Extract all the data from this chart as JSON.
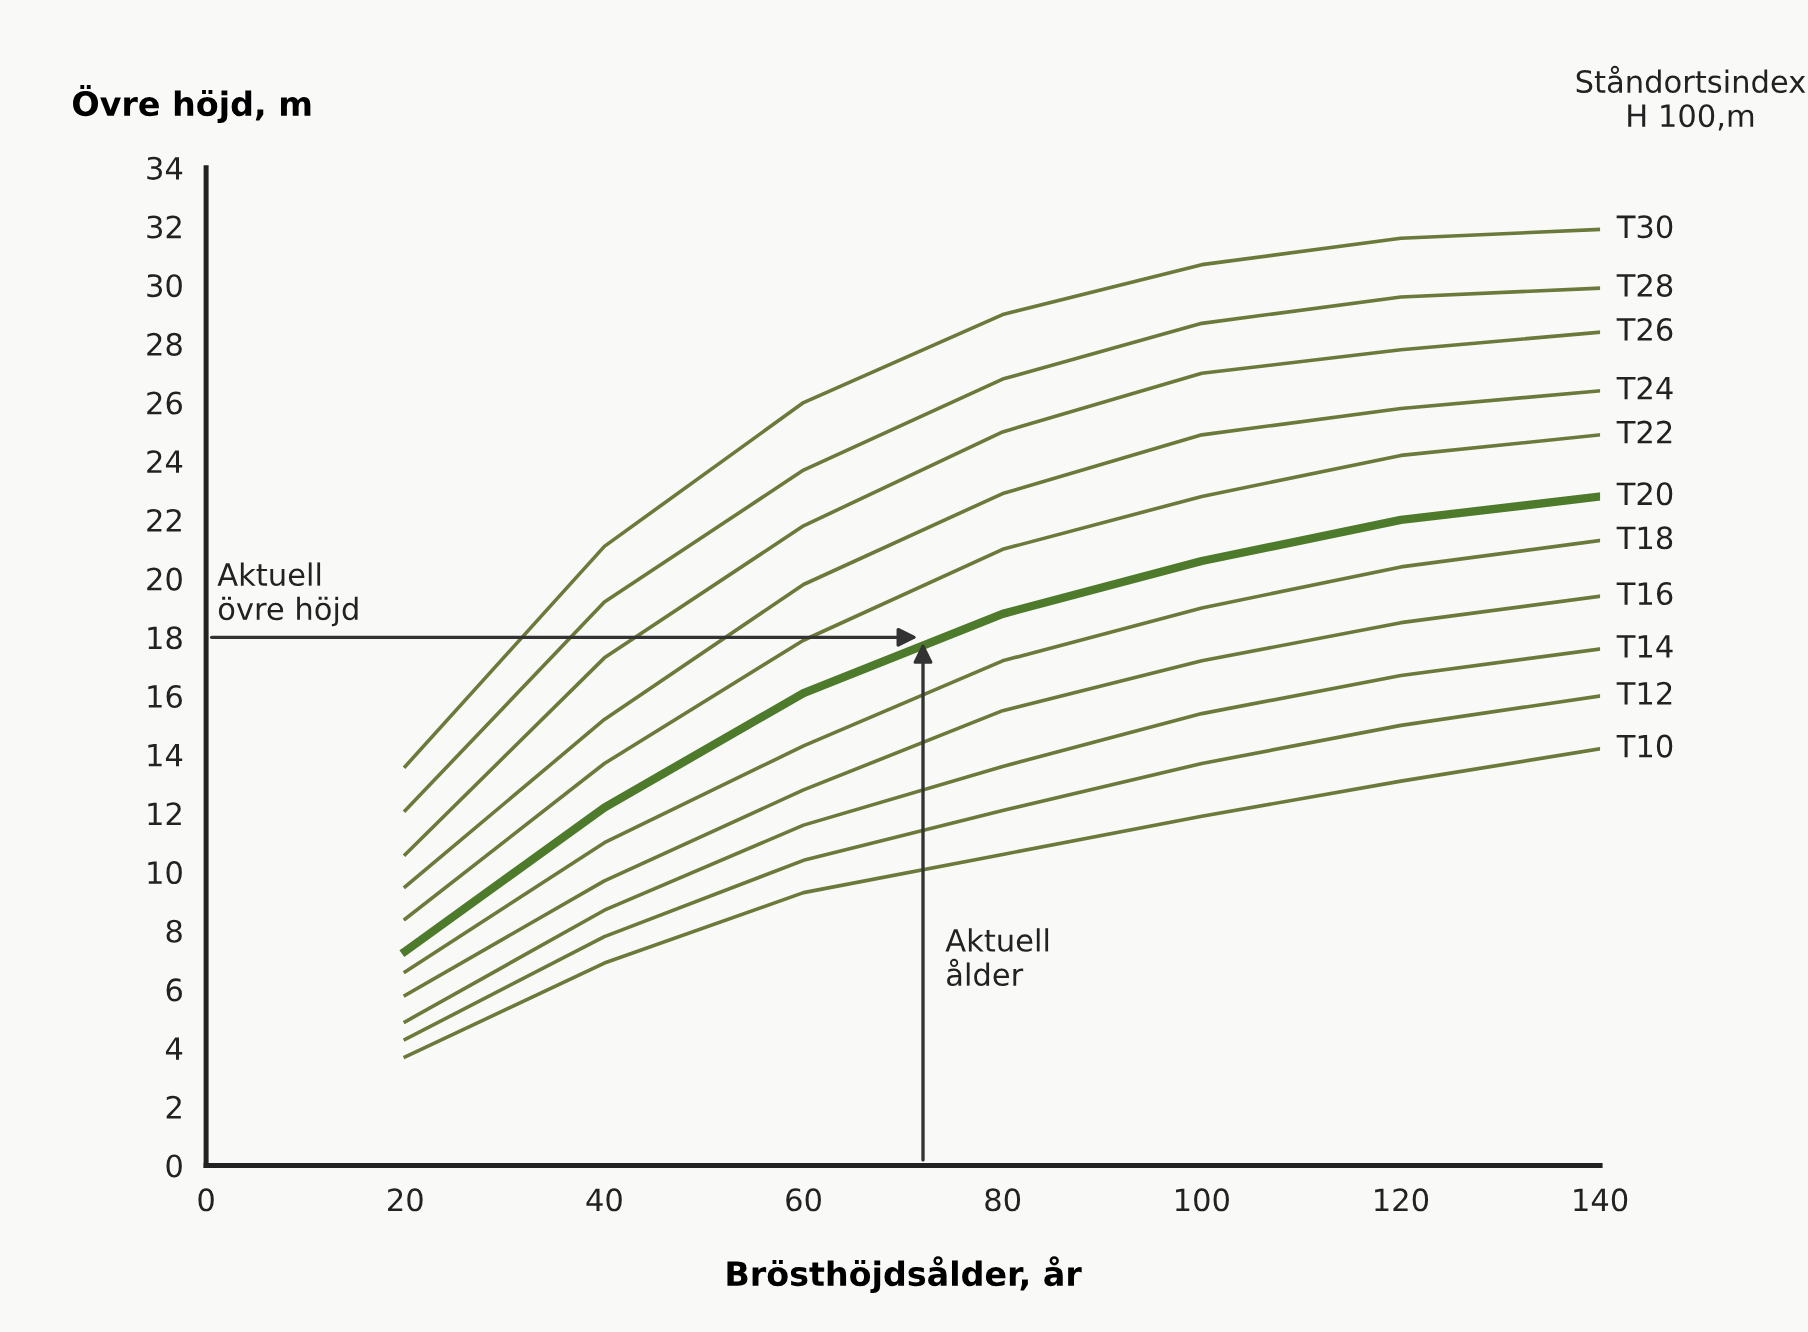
{
  "chart_data": {
    "type": "line",
    "xlabel": "Brösthöjdsålder, år",
    "ylabel": "Övre höjd, m",
    "legend_title": "Ståndortsindex\nH 100,m",
    "x": [
      20,
      40,
      60,
      80,
      100,
      120,
      140
    ],
    "series": [
      {
        "name": "T30",
        "color": "#6b7a3a",
        "values": [
          13.6,
          21.1,
          26.0,
          29.0,
          30.7,
          31.6,
          31.9
        ]
      },
      {
        "name": "T28",
        "color": "#6b7a3a",
        "values": [
          12.1,
          19.2,
          23.7,
          26.8,
          28.7,
          29.6,
          29.9
        ]
      },
      {
        "name": "T26",
        "color": "#6b7a3a",
        "values": [
          10.6,
          17.3,
          21.8,
          25.0,
          27.0,
          27.8,
          28.4
        ]
      },
      {
        "name": "T24",
        "color": "#6b7a3a",
        "values": [
          9.5,
          15.2,
          19.8,
          22.9,
          24.9,
          25.8,
          26.4
        ]
      },
      {
        "name": "T22",
        "color": "#6b7a3a",
        "values": [
          8.4,
          13.7,
          17.9,
          21.0,
          22.8,
          24.2,
          24.9
        ]
      },
      {
        "name": "T20",
        "color": "#4e7a2c",
        "values": [
          7.3,
          12.2,
          16.1,
          18.8,
          20.6,
          22.0,
          22.8
        ]
      },
      {
        "name": "T18",
        "color": "#6b7a3a",
        "values": [
          6.6,
          11.0,
          14.3,
          17.2,
          19.0,
          20.4,
          21.3
        ]
      },
      {
        "name": "T16",
        "color": "#6b7a3a",
        "values": [
          5.8,
          9.7,
          12.8,
          15.5,
          17.2,
          18.5,
          19.4
        ]
      },
      {
        "name": "T14",
        "color": "#6b7a3a",
        "values": [
          4.9,
          8.7,
          11.6,
          13.6,
          15.4,
          16.7,
          17.6
        ]
      },
      {
        "name": "T12",
        "color": "#6b7a3a",
        "values": [
          4.3,
          7.8,
          10.4,
          12.1,
          13.7,
          15.0,
          16.0
        ]
      },
      {
        "name": "T10",
        "color": "#6b7a3a",
        "values": [
          3.7,
          6.9,
          9.3,
          10.6,
          11.9,
          13.1,
          14.2
        ]
      }
    ],
    "annotations": [
      {
        "text": "Aktuell\növre höjd",
        "x": 72,
        "y": 18
      },
      "Aktuell\nålder"
    ],
    "xlim": [
      0,
      140
    ],
    "ylim": [
      0,
      34
    ],
    "xticks": [
      0,
      20,
      40,
      60,
      80,
      100,
      120,
      140
    ],
    "yticks": [
      0,
      2,
      4,
      6,
      8,
      10,
      12,
      14,
      16,
      18,
      20,
      22,
      24,
      26,
      28,
      30,
      32,
      34
    ],
    "grid": false,
    "legend": false,
    "line_style": "solid",
    "marker": "none"
  }
}
